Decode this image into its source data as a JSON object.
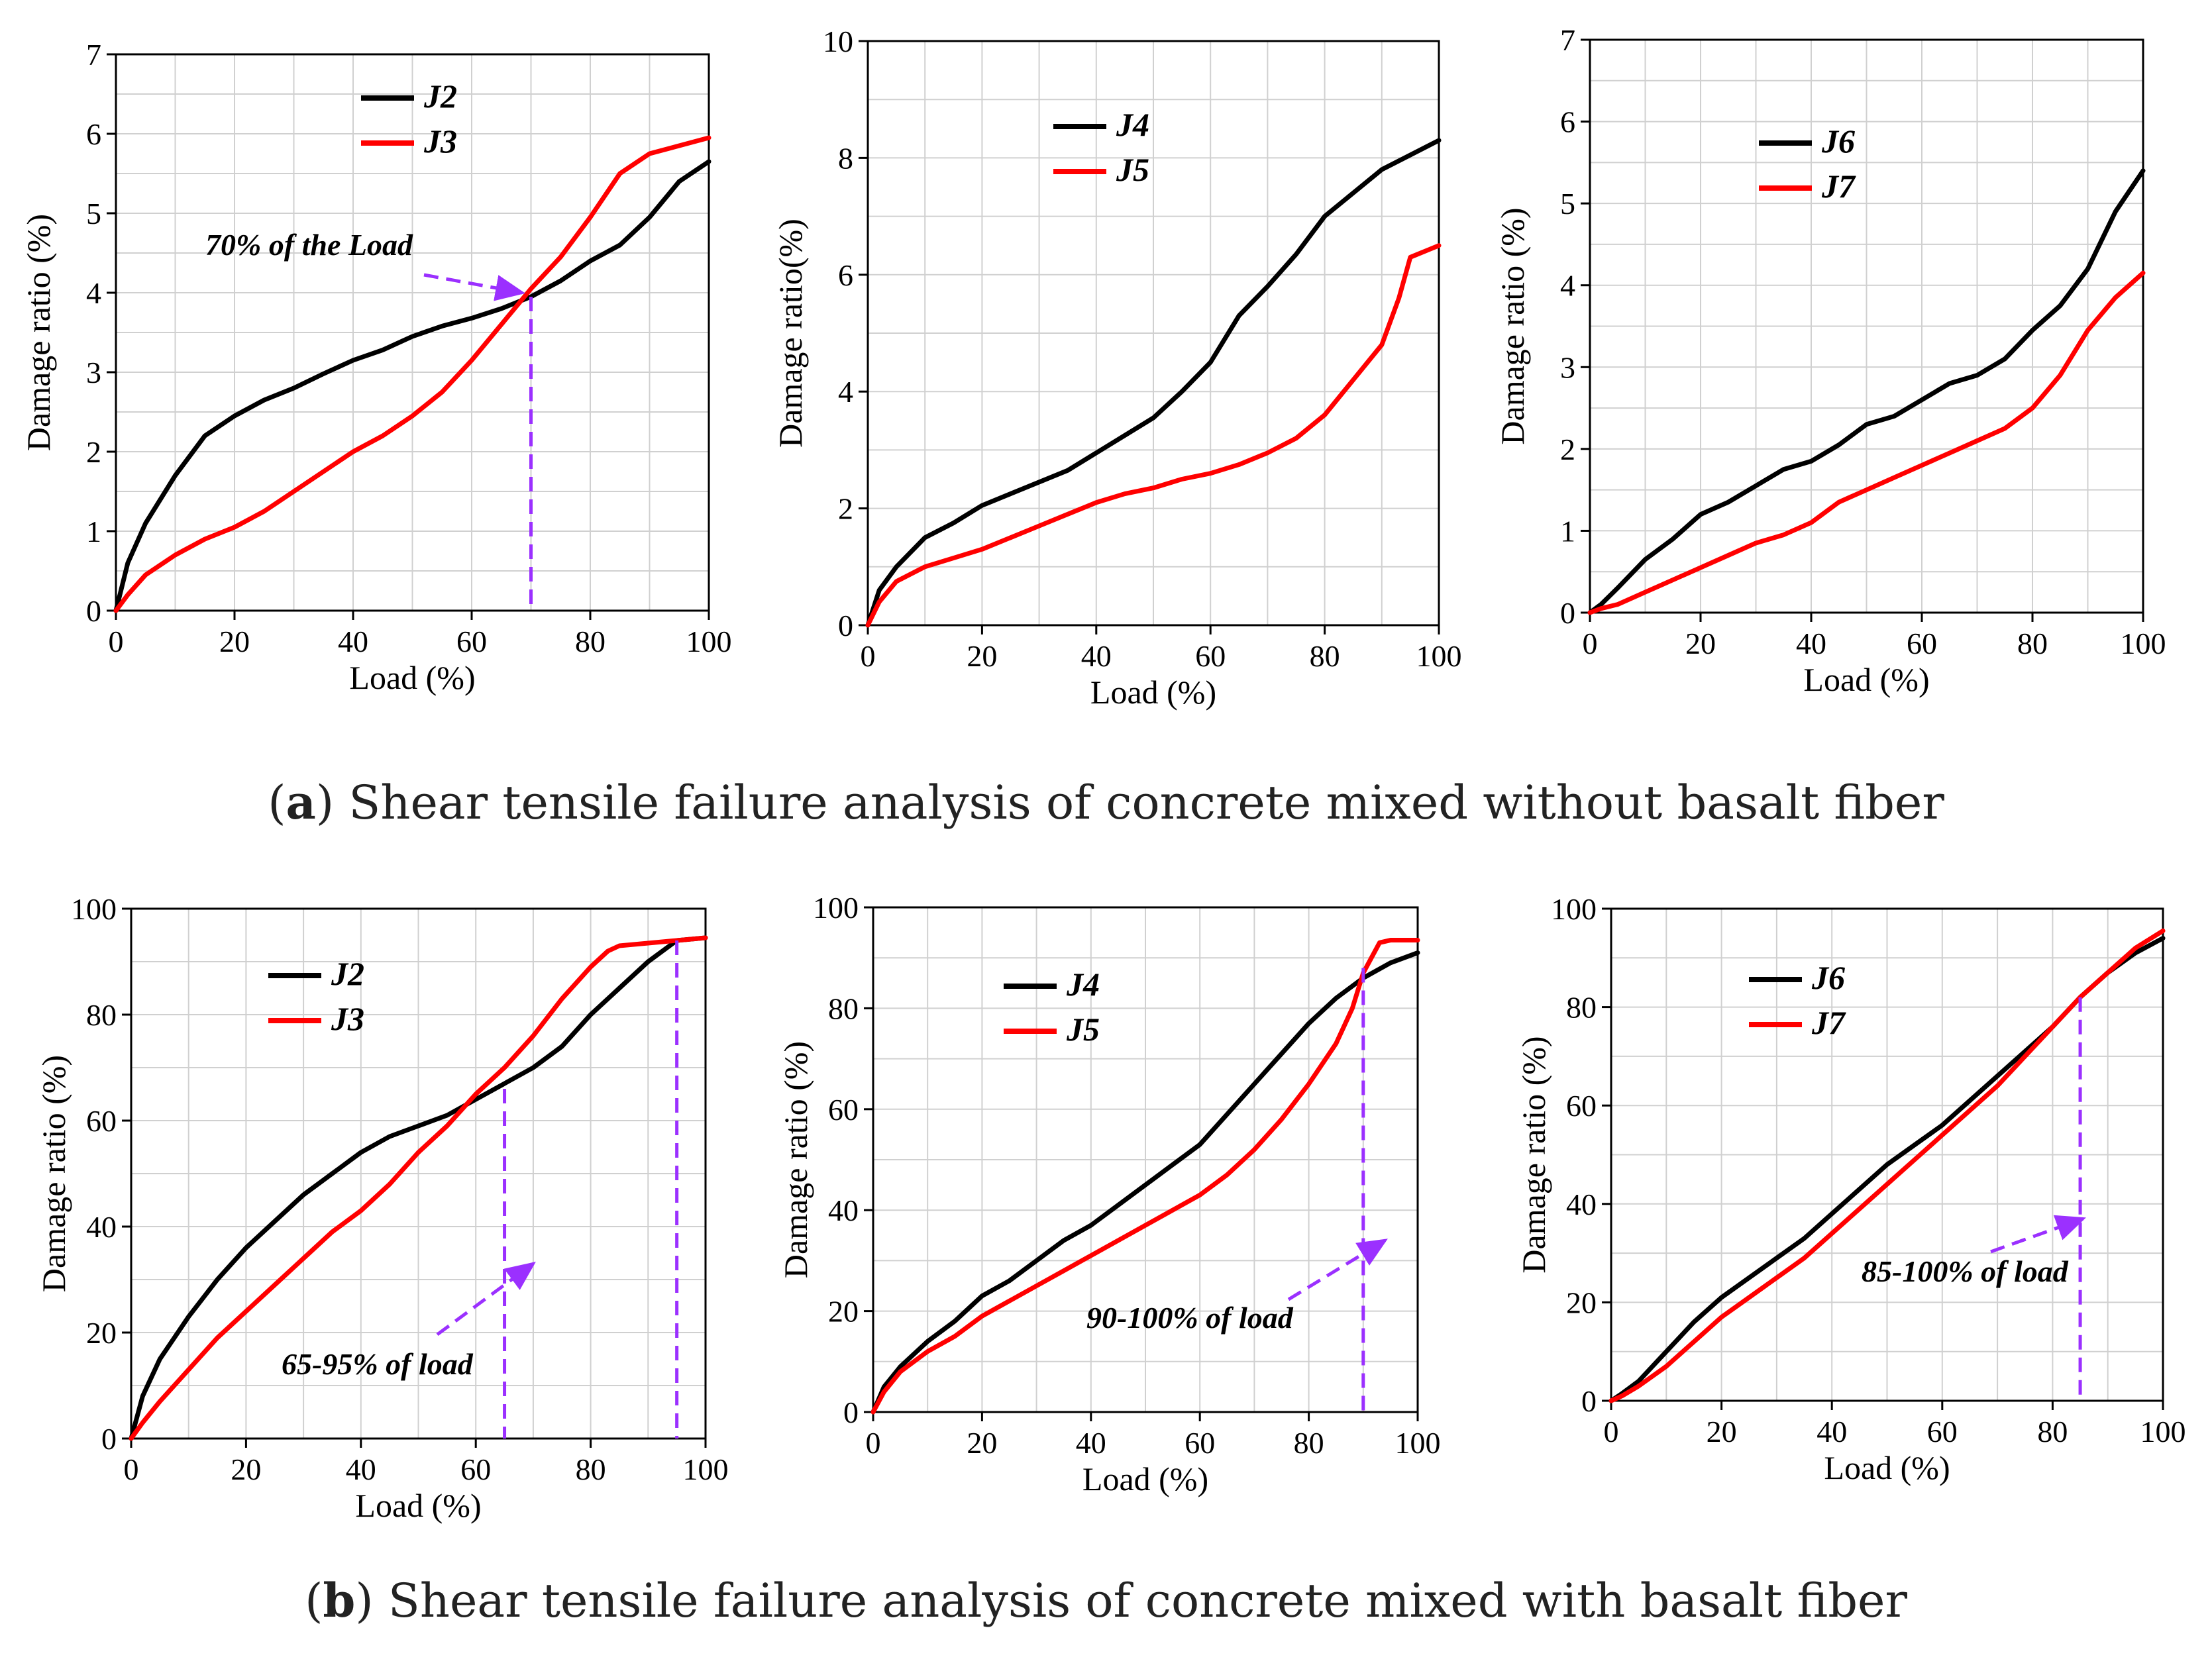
{
  "captions": {
    "a": {
      "letter": "a",
      "text": " Shear tensile failure analysis of concrete mixed without basalt fiber"
    },
    "b": {
      "letter": "b",
      "text": " Shear tensile failure analysis of concrete mixed with basalt fiber"
    }
  },
  "colors": {
    "black": "#000000",
    "red": "#ff0000",
    "annotation": "#9b30ff",
    "grid": "#d0d0d0"
  },
  "chart_data": [
    {
      "id": "a1",
      "type": "line",
      "xlabel": "Load (%)",
      "ylabel": "Damage ratio (%)",
      "xlim": [
        0,
        100
      ],
      "ylim": [
        0,
        7
      ],
      "xticks": [
        0,
        20,
        40,
        60,
        80,
        100
      ],
      "yticks": [
        0,
        1,
        2,
        3,
        4,
        5,
        6,
        7
      ],
      "legend": "upper-left",
      "series": [
        {
          "name": "J2",
          "color": "#000000",
          "x": [
            0,
            2,
            5,
            10,
            15,
            20,
            25,
            30,
            35,
            40,
            45,
            50,
            55,
            60,
            65,
            70,
            75,
            80,
            85,
            90,
            95,
            100
          ],
          "y": [
            0,
            0.6,
            1.1,
            1.7,
            2.2,
            2.45,
            2.65,
            2.8,
            2.98,
            3.15,
            3.28,
            3.45,
            3.58,
            3.68,
            3.8,
            3.95,
            4.15,
            4.4,
            4.6,
            4.95,
            5.4,
            5.65
          ]
        },
        {
          "name": "J3",
          "color": "#ff0000",
          "x": [
            0,
            2,
            5,
            10,
            15,
            20,
            25,
            30,
            35,
            40,
            45,
            50,
            55,
            60,
            65,
            70,
            75,
            80,
            85,
            90,
            95,
            100
          ],
          "y": [
            0,
            0.2,
            0.45,
            0.7,
            0.9,
            1.05,
            1.25,
            1.5,
            1.75,
            2.0,
            2.2,
            2.45,
            2.75,
            3.15,
            3.6,
            4.05,
            4.45,
            4.95,
            5.5,
            5.75,
            5.85,
            5.95
          ]
        }
      ],
      "annotations": [
        {
          "text": "70% of the Load",
          "x": 70
        }
      ]
    },
    {
      "id": "a2",
      "type": "line",
      "xlabel": "Load (%)",
      "ylabel": "Damage ratio(%)",
      "xlim": [
        0,
        100
      ],
      "ylim": [
        0,
        10
      ],
      "xticks": [
        0,
        20,
        40,
        60,
        80,
        100
      ],
      "yticks": [
        0,
        2,
        4,
        6,
        8,
        10
      ],
      "legend": "upper-left",
      "series": [
        {
          "name": "J4",
          "color": "#000000",
          "x": [
            0,
            2,
            5,
            10,
            15,
            20,
            25,
            30,
            35,
            40,
            45,
            50,
            55,
            60,
            65,
            70,
            75,
            80,
            85,
            90,
            95,
            100
          ],
          "y": [
            0,
            0.6,
            1.0,
            1.5,
            1.75,
            2.05,
            2.25,
            2.45,
            2.65,
            2.95,
            3.25,
            3.55,
            4.0,
            4.5,
            5.3,
            5.8,
            6.35,
            7.0,
            7.4,
            7.8,
            8.05,
            8.3
          ]
        },
        {
          "name": "J5",
          "color": "#ff0000",
          "x": [
            0,
            2,
            5,
            10,
            15,
            20,
            25,
            30,
            35,
            40,
            45,
            50,
            55,
            60,
            65,
            70,
            75,
            80,
            85,
            90,
            93,
            95,
            100
          ],
          "y": [
            0,
            0.4,
            0.75,
            1.0,
            1.15,
            1.3,
            1.5,
            1.7,
            1.9,
            2.1,
            2.25,
            2.35,
            2.5,
            2.6,
            2.75,
            2.95,
            3.2,
            3.6,
            4.2,
            4.8,
            5.6,
            6.3,
            6.5
          ]
        }
      ]
    },
    {
      "id": "a3",
      "type": "line",
      "xlabel": "Load (%)",
      "ylabel": "Damage ratio (%)",
      "xlim": [
        0,
        100
      ],
      "ylim": [
        0,
        7
      ],
      "xticks": [
        0,
        20,
        40,
        60,
        80,
        100
      ],
      "yticks": [
        0,
        1,
        2,
        3,
        4,
        5,
        6,
        7
      ],
      "legend": "upper-left",
      "series": [
        {
          "name": "J6",
          "color": "#000000",
          "x": [
            0,
            2,
            5,
            10,
            15,
            20,
            25,
            30,
            35,
            40,
            45,
            50,
            55,
            60,
            65,
            70,
            75,
            80,
            85,
            90,
            95,
            100
          ],
          "y": [
            0,
            0.1,
            0.3,
            0.65,
            0.9,
            1.2,
            1.35,
            1.55,
            1.75,
            1.85,
            2.05,
            2.3,
            2.4,
            2.6,
            2.8,
            2.9,
            3.1,
            3.45,
            3.75,
            4.2,
            4.9,
            5.4
          ]
        },
        {
          "name": "J7",
          "color": "#ff0000",
          "x": [
            0,
            2,
            5,
            10,
            15,
            20,
            25,
            30,
            35,
            40,
            45,
            50,
            55,
            60,
            65,
            70,
            75,
            80,
            85,
            90,
            95,
            100
          ],
          "y": [
            0,
            0.05,
            0.1,
            0.25,
            0.4,
            0.55,
            0.7,
            0.85,
            0.95,
            1.1,
            1.35,
            1.5,
            1.65,
            1.8,
            1.95,
            2.1,
            2.25,
            2.5,
            2.9,
            3.45,
            3.85,
            4.15
          ]
        }
      ]
    },
    {
      "id": "b1",
      "type": "line",
      "xlabel": "Load (%)",
      "ylabel": "Damage ratio (%)",
      "xlim": [
        0,
        100
      ],
      "ylim": [
        0,
        100
      ],
      "xticks": [
        0,
        20,
        40,
        60,
        80,
        100
      ],
      "yticks": [
        0,
        20,
        40,
        60,
        80,
        100
      ],
      "legend": "upper-left",
      "series": [
        {
          "name": "J2",
          "color": "#000000",
          "x": [
            0,
            2,
            5,
            10,
            15,
            20,
            25,
            30,
            35,
            40,
            45,
            50,
            55,
            60,
            65,
            70,
            75,
            80,
            85,
            90,
            95,
            100
          ],
          "y": [
            0,
            8,
            15,
            23,
            30,
            36,
            41,
            46,
            50,
            54,
            57,
            59,
            61,
            64,
            67,
            70,
            74,
            80,
            85,
            90,
            94,
            94.5
          ]
        },
        {
          "name": "J3",
          "color": "#ff0000",
          "x": [
            0,
            2,
            5,
            10,
            15,
            20,
            25,
            30,
            35,
            40,
            45,
            50,
            55,
            60,
            65,
            70,
            75,
            80,
            83,
            85,
            90,
            95,
            100
          ],
          "y": [
            0,
            3,
            7,
            13,
            19,
            24,
            29,
            34,
            39,
            43,
            48,
            54,
            59,
            65,
            70,
            76,
            83,
            89,
            92,
            93,
            93.5,
            94,
            94.5
          ]
        }
      ],
      "annotations": [
        {
          "text": "65-95% of load",
          "x": [
            65,
            95
          ]
        }
      ]
    },
    {
      "id": "b2",
      "type": "line",
      "xlabel": "Load (%)",
      "ylabel": "Damage ratio (%)",
      "xlim": [
        0,
        100
      ],
      "ylim": [
        0,
        100
      ],
      "xticks": [
        0,
        20,
        40,
        60,
        80,
        100
      ],
      "yticks": [
        0,
        20,
        40,
        60,
        80,
        100
      ],
      "legend": "upper-left",
      "series": [
        {
          "name": "J4",
          "color": "#000000",
          "x": [
            0,
            2,
            5,
            10,
            15,
            20,
            25,
            30,
            35,
            40,
            45,
            50,
            55,
            60,
            65,
            70,
            75,
            80,
            85,
            90,
            95,
            100
          ],
          "y": [
            0,
            5,
            9,
            14,
            18,
            23,
            26,
            30,
            34,
            37,
            41,
            45,
            49,
            53,
            59,
            65,
            71,
            77,
            82,
            86,
            89,
            91
          ]
        },
        {
          "name": "J5",
          "color": "#ff0000",
          "x": [
            0,
            2,
            5,
            10,
            15,
            20,
            25,
            30,
            35,
            40,
            45,
            50,
            55,
            60,
            65,
            70,
            75,
            80,
            85,
            88,
            90,
            93,
            95,
            100
          ],
          "y": [
            0,
            4,
            8,
            12,
            15,
            19,
            22,
            25,
            28,
            31,
            34,
            37,
            40,
            43,
            47,
            52,
            58,
            65,
            73,
            80,
            87,
            93,
            93.5,
            93.5
          ]
        }
      ],
      "annotations": [
        {
          "text": "90-100% of load",
          "x": 90
        }
      ]
    },
    {
      "id": "b3",
      "type": "line",
      "xlabel": "Load (%)",
      "ylabel": "Damage ratio (%)",
      "xlim": [
        0,
        100
      ],
      "ylim": [
        0,
        100
      ],
      "xticks": [
        0,
        20,
        40,
        60,
        80,
        100
      ],
      "yticks": [
        0,
        20,
        40,
        60,
        80,
        100
      ],
      "legend": "upper-left",
      "series": [
        {
          "name": "J6",
          "color": "#000000",
          "x": [
            0,
            2,
            5,
            10,
            15,
            20,
            25,
            30,
            35,
            40,
            45,
            50,
            55,
            60,
            65,
            70,
            75,
            80,
            85,
            90,
            95,
            100
          ],
          "y": [
            0,
            1.5,
            4,
            10,
            16,
            21,
            25,
            29,
            33,
            38,
            43,
            48,
            52,
            56,
            61,
            66,
            71,
            76,
            82,
            87,
            91,
            94
          ]
        },
        {
          "name": "J7",
          "color": "#ff0000",
          "x": [
            0,
            2,
            5,
            10,
            15,
            20,
            25,
            30,
            35,
            40,
            45,
            50,
            55,
            60,
            65,
            70,
            75,
            80,
            85,
            90,
            95,
            100
          ],
          "y": [
            0,
            1,
            3,
            7,
            12,
            17,
            21,
            25,
            29,
            34,
            39,
            44,
            49,
            54,
            59,
            64,
            70,
            76,
            82,
            87,
            92,
            95.5
          ]
        }
      ],
      "annotations": [
        {
          "text": "85-100% of load",
          "x": 85
        }
      ]
    }
  ]
}
